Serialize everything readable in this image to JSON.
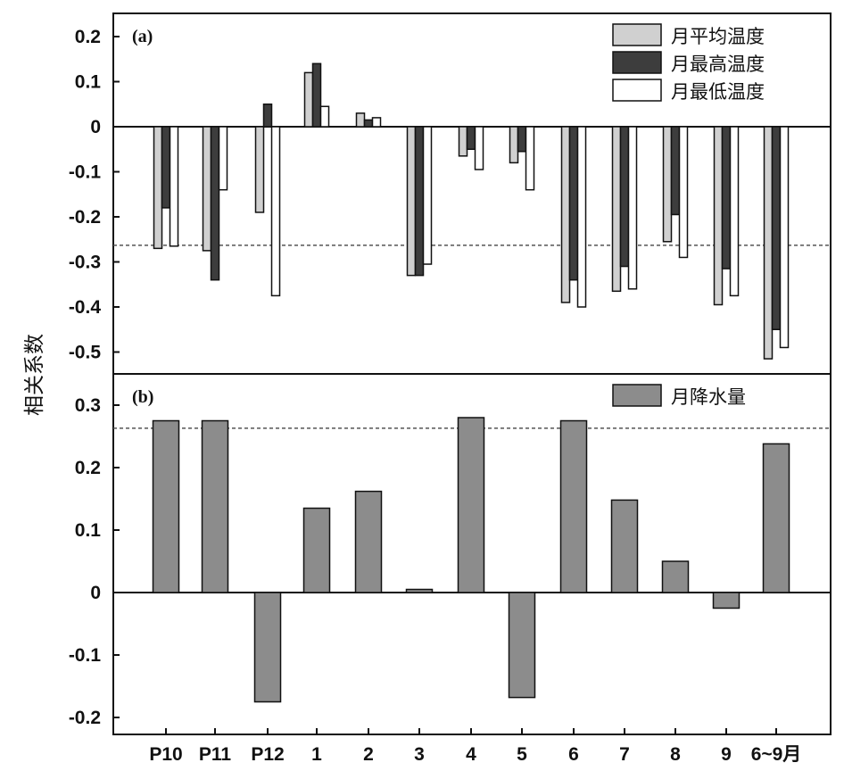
{
  "ylabel": "相关系数",
  "chart_data": [
    {
      "type": "bar",
      "panel_label": "(a)",
      "categories": [
        "P10",
        "P11",
        "P12",
        "1",
        "2",
        "3",
        "4",
        "5",
        "6",
        "7",
        "8",
        "9",
        "6~9月"
      ],
      "series": [
        {
          "name": "月平均温度",
          "color": "#d0d0d0",
          "values": [
            -0.27,
            -0.275,
            -0.19,
            0.12,
            0.03,
            -0.33,
            -0.065,
            -0.08,
            -0.39,
            -0.365,
            -0.255,
            -0.395,
            -0.515
          ]
        },
        {
          "name": "月最高温度",
          "color": "#3d3d3d",
          "values": [
            -0.18,
            -0.34,
            0.05,
            0.14,
            0.015,
            -0.33,
            -0.05,
            -0.055,
            -0.34,
            -0.31,
            -0.195,
            -0.315,
            -0.45
          ]
        },
        {
          "name": "月最低温度",
          "color": "#ffffff",
          "values": [
            -0.265,
            -0.14,
            -0.375,
            0.045,
            0.02,
            -0.305,
            -0.095,
            -0.14,
            -0.4,
            -0.36,
            -0.29,
            -0.375,
            -0.49
          ]
        }
      ],
      "ylim": [
        -0.55,
        0.25
      ],
      "yticks": [
        "0.2",
        "0.1",
        "0",
        "-0.1",
        "-0.2",
        "-0.3",
        "-0.4",
        "-0.5"
      ],
      "ytick_values": [
        0.2,
        0.1,
        0,
        -0.1,
        -0.2,
        -0.3,
        -0.4,
        -0.5
      ],
      "significance_line": -0.263,
      "legend_position": "top-right"
    },
    {
      "type": "bar",
      "panel_label": "(b)",
      "categories": [
        "P10",
        "P11",
        "P12",
        "1",
        "2",
        "3",
        "4",
        "5",
        "6",
        "7",
        "8",
        "9",
        "6~9月"
      ],
      "series": [
        {
          "name": "月降水量",
          "color": "#8c8c8c",
          "values": [
            0.275,
            0.275,
            -0.175,
            0.135,
            0.162,
            0.005,
            0.28,
            -0.168,
            0.275,
            0.148,
            0.05,
            -0.025,
            0.238
          ]
        }
      ],
      "ylim": [
        -0.22,
        0.345
      ],
      "yticks": [
        "0.3",
        "0.2",
        "0.1",
        "0",
        "-0.1",
        "-0.2"
      ],
      "ytick_values": [
        0.3,
        0.2,
        0.1,
        0,
        -0.1,
        -0.2
      ],
      "significance_line": 0.263,
      "legend_position": "top-right"
    }
  ]
}
